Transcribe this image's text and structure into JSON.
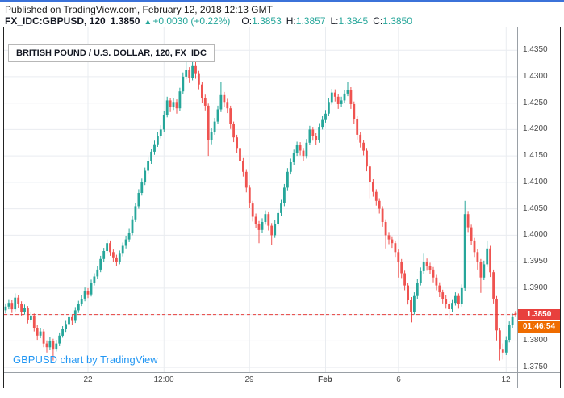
{
  "header": {
    "published_line": "Published on TradingView.com, February 12, 2018 12:13 GMT",
    "symbol_line": {
      "symbol": "FX_IDC:GBPUSD, 120",
      "last_price": "1.3850",
      "change_arrow": "▲",
      "change": "+0.0030 (+0.22%)",
      "ohlc": [
        {
          "label": "O:",
          "value": "1.3853"
        },
        {
          "label": "H:",
          "value": "1.3857"
        },
        {
          "label": "L:",
          "value": "1.3845"
        },
        {
          "label": "C:",
          "value": "1.3850"
        }
      ]
    }
  },
  "chart": {
    "legend": "BRITISH POUND / U.S. DOLLAR, 120, FX_IDC",
    "watermark": "GBPUSD chart by TradingView",
    "price_label": "1.3850",
    "countdown_label": "01:46:54",
    "colors": {
      "up": "#26a69a",
      "down": "#ef5350",
      "last_price_line": "#e8403d",
      "price_tag_bg": "#e8403d",
      "countdown_bg": "#ef6c00",
      "watermark": "#2196f3",
      "grid": "#e9ecf0",
      "axis_line": "#9aa0a6",
      "axis_text": "#4a4a4a"
    }
  },
  "chart_data": {
    "type": "candlestick",
    "title": "BRITISH POUND / U.S. DOLLAR, 120, FX_IDC",
    "symbol": "FX_IDC:GBPUSD",
    "interval_minutes": 120,
    "last_price": 1.385,
    "ylim": [
      1.3741,
      1.4393
    ],
    "grid": true,
    "y_axis": {
      "ticks": [
        "1.4350",
        "1.4300",
        "1.4250",
        "1.4200",
        "1.4150",
        "1.4100",
        "1.4050",
        "1.4000",
        "1.3950",
        "1.3900",
        "1.3850",
        "1.3800",
        "1.3750"
      ]
    },
    "x_axis": {
      "ticks": [
        {
          "label": "22",
          "index": 26
        },
        {
          "label": "12:00",
          "index": 50
        },
        {
          "label": "29",
          "index": 77
        },
        {
          "label": "Feb",
          "index": 101,
          "bold": true
        },
        {
          "label": "6",
          "index": 124
        },
        {
          "label": "12",
          "index": 158
        }
      ]
    },
    "candles": [
      [
        1.3858,
        1.3871,
        1.3852,
        1.3865
      ],
      [
        1.3865,
        1.3879,
        1.386,
        1.3872
      ],
      [
        1.3872,
        1.3877,
        1.3853,
        1.386
      ],
      [
        1.386,
        1.389,
        1.3856,
        1.3882
      ],
      [
        1.3882,
        1.3887,
        1.3863,
        1.387
      ],
      [
        1.387,
        1.3875,
        1.3848,
        1.3855
      ],
      [
        1.3855,
        1.3869,
        1.385,
        1.3862
      ],
      [
        1.3862,
        1.3866,
        1.3833,
        1.384
      ],
      [
        1.384,
        1.3855,
        1.3835,
        1.3848
      ],
      [
        1.3848,
        1.3852,
        1.3818,
        1.3825
      ],
      [
        1.3825,
        1.383,
        1.3802,
        1.381
      ],
      [
        1.381,
        1.3825,
        1.3805,
        1.3818
      ],
      [
        1.3818,
        1.3822,
        1.3788,
        1.3795
      ],
      [
        1.3795,
        1.3801,
        1.3778,
        1.3788
      ],
      [
        1.3788,
        1.3807,
        1.3783,
        1.38
      ],
      [
        1.38,
        1.3804,
        1.3763,
        1.3785
      ],
      [
        1.3785,
        1.3802,
        1.378,
        1.3795
      ],
      [
        1.3795,
        1.3816,
        1.379,
        1.381
      ],
      [
        1.381,
        1.3828,
        1.3806,
        1.3822
      ],
      [
        1.3822,
        1.3838,
        1.3817,
        1.3832
      ],
      [
        1.3832,
        1.3851,
        1.3828,
        1.3845
      ],
      [
        1.3845,
        1.385,
        1.383,
        1.3838
      ],
      [
        1.3838,
        1.3864,
        1.3834,
        1.3858
      ],
      [
        1.3858,
        1.3876,
        1.3853,
        1.387
      ],
      [
        1.387,
        1.3887,
        1.3866,
        1.388
      ],
      [
        1.388,
        1.3901,
        1.3875,
        1.3895
      ],
      [
        1.3895,
        1.39,
        1.3881,
        1.3888
      ],
      [
        1.3888,
        1.3916,
        1.3884,
        1.391
      ],
      [
        1.391,
        1.3928,
        1.3905,
        1.3922
      ],
      [
        1.3922,
        1.3941,
        1.3917,
        1.3935
      ],
      [
        1.3935,
        1.3961,
        1.393,
        1.3955
      ],
      [
        1.3955,
        1.3976,
        1.395,
        1.397
      ],
      [
        1.397,
        1.3992,
        1.3965,
        1.3985
      ],
      [
        1.3985,
        1.399,
        1.3961,
        1.3968
      ],
      [
        1.3968,
        1.3973,
        1.395,
        1.3958
      ],
      [
        1.3958,
        1.3963,
        1.3942,
        1.395
      ],
      [
        1.395,
        1.3971,
        1.3945,
        1.3965
      ],
      [
        1.3965,
        1.3986,
        1.396,
        1.398
      ],
      [
        1.398,
        1.3999,
        1.3975,
        1.3992
      ],
      [
        1.3992,
        1.4012,
        1.3987,
        1.4005
      ],
      [
        1.4005,
        1.4036,
        1.4,
        1.403
      ],
      [
        1.403,
        1.4061,
        1.4025,
        1.4055
      ],
      [
        1.4055,
        1.4087,
        1.405,
        1.408
      ],
      [
        1.408,
        1.4107,
        1.4075,
        1.41
      ],
      [
        1.41,
        1.4128,
        1.4095,
        1.4122
      ],
      [
        1.4122,
        1.4147,
        1.4117,
        1.414
      ],
      [
        1.414,
        1.4164,
        1.4135,
        1.4158
      ],
      [
        1.4158,
        1.4179,
        1.4152,
        1.4172
      ],
      [
        1.4172,
        1.4195,
        1.4167,
        1.4188
      ],
      [
        1.4188,
        1.4208,
        1.4183,
        1.42
      ],
      [
        1.42,
        1.4235,
        1.4195,
        1.4228
      ],
      [
        1.4228,
        1.4262,
        1.4223,
        1.4255
      ],
      [
        1.4255,
        1.426,
        1.4233,
        1.4242
      ],
      [
        1.4242,
        1.4259,
        1.4237,
        1.4252
      ],
      [
        1.4252,
        1.4257,
        1.423,
        1.424
      ],
      [
        1.424,
        1.4279,
        1.4235,
        1.4272
      ],
      [
        1.4272,
        1.4308,
        1.4267,
        1.43
      ],
      [
        1.43,
        1.433,
        1.4295,
        1.4312
      ],
      [
        1.4312,
        1.4318,
        1.4288,
        1.4298
      ],
      [
        1.4298,
        1.4345,
        1.4293,
        1.432
      ],
      [
        1.432,
        1.4337,
        1.4296,
        1.4305
      ],
      [
        1.4305,
        1.4311,
        1.4276,
        1.4285
      ],
      [
        1.4285,
        1.429,
        1.4251,
        1.426
      ],
      [
        1.426,
        1.4266,
        1.4236,
        1.4245
      ],
      [
        1.4245,
        1.4249,
        1.415,
        1.418
      ],
      [
        1.418,
        1.4203,
        1.4172,
        1.4195
      ],
      [
        1.4195,
        1.4222,
        1.419,
        1.4215
      ],
      [
        1.4215,
        1.4245,
        1.421,
        1.4238
      ],
      [
        1.4238,
        1.429,
        1.4233,
        1.4265
      ],
      [
        1.4265,
        1.4271,
        1.4243,
        1.4252
      ],
      [
        1.4252,
        1.4258,
        1.4231,
        1.424
      ],
      [
        1.424,
        1.4245,
        1.4201,
        1.421
      ],
      [
        1.421,
        1.4215,
        1.4176,
        1.4185
      ],
      [
        1.4185,
        1.419,
        1.4156,
        1.4165
      ],
      [
        1.4165,
        1.417,
        1.4131,
        1.414
      ],
      [
        1.414,
        1.4146,
        1.4111,
        1.412
      ],
      [
        1.412,
        1.4125,
        1.4081,
        1.409
      ],
      [
        1.409,
        1.4095,
        1.4051,
        1.406
      ],
      [
        1.406,
        1.4065,
        1.4026,
        1.4035
      ],
      [
        1.4035,
        1.4041,
        1.4013,
        1.4022
      ],
      [
        1.4022,
        1.4027,
        1.3985,
        1.401
      ],
      [
        1.401,
        1.4032,
        1.4004,
        1.4025
      ],
      [
        1.4025,
        1.4047,
        1.402,
        1.404
      ],
      [
        1.404,
        1.4045,
        1.4009,
        1.4018
      ],
      [
        1.4018,
        1.4023,
        1.3981,
        1.4
      ],
      [
        1.4,
        1.4029,
        1.3995,
        1.4022
      ],
      [
        1.4022,
        1.4049,
        1.4017,
        1.4042
      ],
      [
        1.4042,
        1.4067,
        1.4037,
        1.406
      ],
      [
        1.406,
        1.4097,
        1.4055,
        1.409
      ],
      [
        1.409,
        1.4127,
        1.4085,
        1.412
      ],
      [
        1.412,
        1.4145,
        1.4115,
        1.4138
      ],
      [
        1.4138,
        1.4162,
        1.4133,
        1.4155
      ],
      [
        1.4155,
        1.4177,
        1.415,
        1.417
      ],
      [
        1.417,
        1.4176,
        1.4151,
        1.416
      ],
      [
        1.416,
        1.4165,
        1.4141,
        1.415
      ],
      [
        1.415,
        1.4182,
        1.4145,
        1.4175
      ],
      [
        1.4175,
        1.4207,
        1.417,
        1.42
      ],
      [
        1.42,
        1.4205,
        1.4179,
        1.4188
      ],
      [
        1.4188,
        1.4193,
        1.4171,
        1.418
      ],
      [
        1.418,
        1.4212,
        1.4175,
        1.4205
      ],
      [
        1.4205,
        1.4225,
        1.42,
        1.4218
      ],
      [
        1.4218,
        1.4237,
        1.4213,
        1.423
      ],
      [
        1.423,
        1.4259,
        1.4225,
        1.4252
      ],
      [
        1.4252,
        1.4277,
        1.4247,
        1.427
      ],
      [
        1.427,
        1.4276,
        1.4253,
        1.4262
      ],
      [
        1.4262,
        1.4267,
        1.4239,
        1.4248
      ],
      [
        1.4248,
        1.4262,
        1.4243,
        1.4255
      ],
      [
        1.4255,
        1.4275,
        1.425,
        1.4268
      ],
      [
        1.4268,
        1.429,
        1.4263,
        1.4275
      ],
      [
        1.4275,
        1.428,
        1.4239,
        1.4248
      ],
      [
        1.4248,
        1.4253,
        1.4211,
        1.422
      ],
      [
        1.422,
        1.4225,
        1.4181,
        1.419
      ],
      [
        1.419,
        1.4196,
        1.4166,
        1.4175
      ],
      [
        1.4175,
        1.418,
        1.4151,
        1.416
      ],
      [
        1.416,
        1.4165,
        1.4121,
        1.413
      ],
      [
        1.413,
        1.4135,
        1.407,
        1.41
      ],
      [
        1.41,
        1.4106,
        1.4073,
        1.4082
      ],
      [
        1.4082,
        1.4087,
        1.4056,
        1.4065
      ],
      [
        1.4065,
        1.407,
        1.4041,
        1.405
      ],
      [
        1.405,
        1.4055,
        1.4016,
        1.4025
      ],
      [
        1.4025,
        1.403,
        1.3975,
        1.4
      ],
      [
        1.4,
        1.4006,
        1.3983,
        1.3992
      ],
      [
        1.3992,
        1.3998,
        1.3976,
        1.3985
      ],
      [
        1.3985,
        1.399,
        1.3959,
        1.3968
      ],
      [
        1.3968,
        1.3973,
        1.392,
        1.395
      ],
      [
        1.395,
        1.3955,
        1.3919,
        1.3928
      ],
      [
        1.3928,
        1.3933,
        1.3896,
        1.3905
      ],
      [
        1.3905,
        1.391,
        1.3869,
        1.3878
      ],
      [
        1.3878,
        1.3883,
        1.3835,
        1.3855
      ],
      [
        1.3855,
        1.3892,
        1.385,
        1.3885
      ],
      [
        1.3885,
        1.3917,
        1.388,
        1.391
      ],
      [
        1.391,
        1.3939,
        1.3905,
        1.3932
      ],
      [
        1.3932,
        1.3965,
        1.3927,
        1.395
      ],
      [
        1.395,
        1.3956,
        1.3933,
        1.3942
      ],
      [
        1.3942,
        1.3948,
        1.3926,
        1.3935
      ],
      [
        1.3935,
        1.394,
        1.3911,
        1.392
      ],
      [
        1.392,
        1.3925,
        1.3896,
        1.3905
      ],
      [
        1.3905,
        1.3911,
        1.3883,
        1.3892
      ],
      [
        1.3892,
        1.3897,
        1.3871,
        1.388
      ],
      [
        1.388,
        1.3886,
        1.3861,
        1.387
      ],
      [
        1.387,
        1.3875,
        1.3842,
        1.386
      ],
      [
        1.386,
        1.3879,
        1.3855,
        1.3872
      ],
      [
        1.3872,
        1.3892,
        1.3867,
        1.3885
      ],
      [
        1.3885,
        1.389,
        1.3861,
        1.387
      ],
      [
        1.387,
        1.3907,
        1.3865,
        1.39
      ],
      [
        1.39,
        1.4065,
        1.3895,
        1.404
      ],
      [
        1.404,
        1.4046,
        1.4006,
        1.4015
      ],
      [
        1.4015,
        1.402,
        1.3981,
        1.399
      ],
      [
        1.399,
        1.3995,
        1.3959,
        1.3968
      ],
      [
        1.3968,
        1.3974,
        1.3935,
        1.395
      ],
      [
        1.395,
        1.3955,
        1.3891,
        1.392
      ],
      [
        1.392,
        1.3952,
        1.3915,
        1.3945
      ],
      [
        1.3945,
        1.399,
        1.394,
        1.3975
      ],
      [
        1.3975,
        1.398,
        1.3921,
        1.393
      ],
      [
        1.393,
        1.3935,
        1.3871,
        1.388
      ],
      [
        1.388,
        1.3885,
        1.3801,
        1.382
      ],
      [
        1.382,
        1.3825,
        1.3763,
        1.3785
      ],
      [
        1.3785,
        1.3795,
        1.3765,
        1.3778
      ],
      [
        1.3778,
        1.3809,
        1.3773,
        1.3802
      ],
      [
        1.3802,
        1.3837,
        1.3797,
        1.383
      ],
      [
        1.383,
        1.3852,
        1.3825,
        1.3845
      ],
      [
        1.3853,
        1.3857,
        1.3845,
        1.385
      ]
    ]
  }
}
